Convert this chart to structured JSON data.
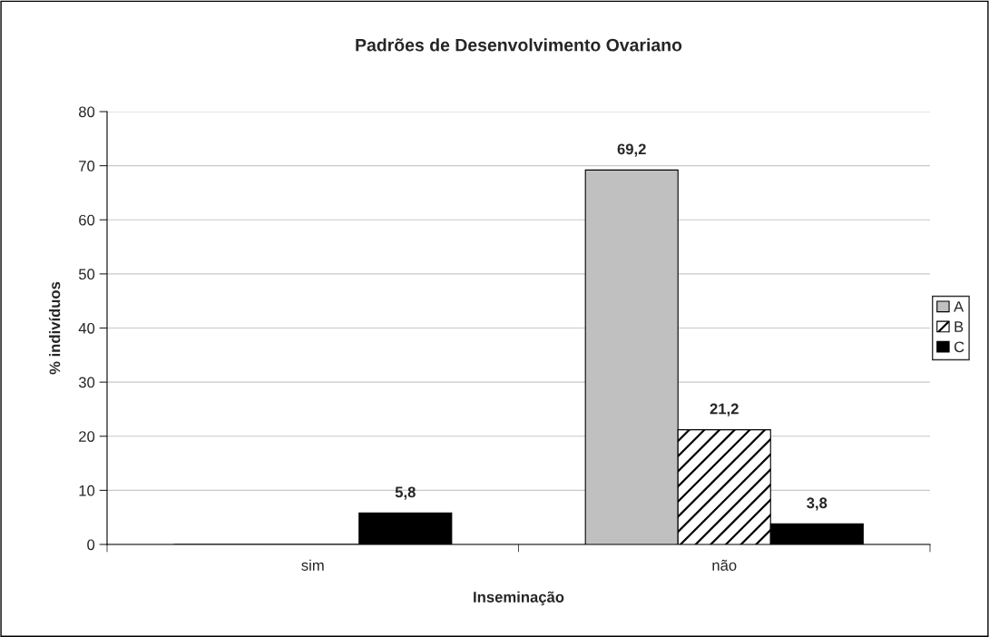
{
  "chart_data": {
    "type": "bar",
    "title": "Padrões de Desenvolvimento Ovariano",
    "xlabel": "Inseminação",
    "ylabel": "% indivíduos",
    "categories": [
      "sim",
      "não"
    ],
    "series": [
      {
        "name": "A",
        "color": "#c0c0c0",
        "values": [
          0,
          69.2
        ],
        "value_labels": [
          null,
          "69,2"
        ]
      },
      {
        "name": "B",
        "color": "#000000",
        "values": [
          0,
          21.2
        ],
        "value_labels": [
          null,
          "21,2"
        ]
      },
      {
        "name": "C",
        "color": "#000000",
        "values": [
          5.8,
          3.8
        ],
        "value_labels": [
          "5,8",
          "3,8"
        ]
      }
    ],
    "ylim": [
      0,
      80
    ],
    "yticks": [
      0,
      10,
      20,
      30,
      40,
      50,
      60,
      70,
      80
    ],
    "grid": "y",
    "legend": "right"
  }
}
